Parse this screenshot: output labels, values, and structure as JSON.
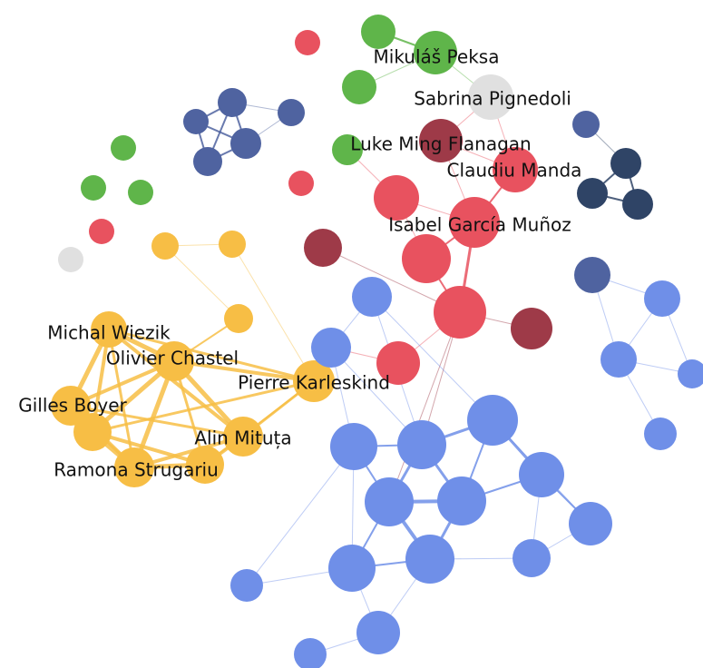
{
  "labels": [
    "Mikuláš Peksa",
    "Sabrina Pignedoli",
    "Luke Ming Flanagan",
    "Claudiu Manda",
    "Isabel García Muñoz",
    "Michal Wiezik",
    "Olivier Chastel",
    "Pierre Karleskind",
    "Gilles Boyer",
    "Alin Mituța",
    "Ramona Strugariu"
  ]
}
